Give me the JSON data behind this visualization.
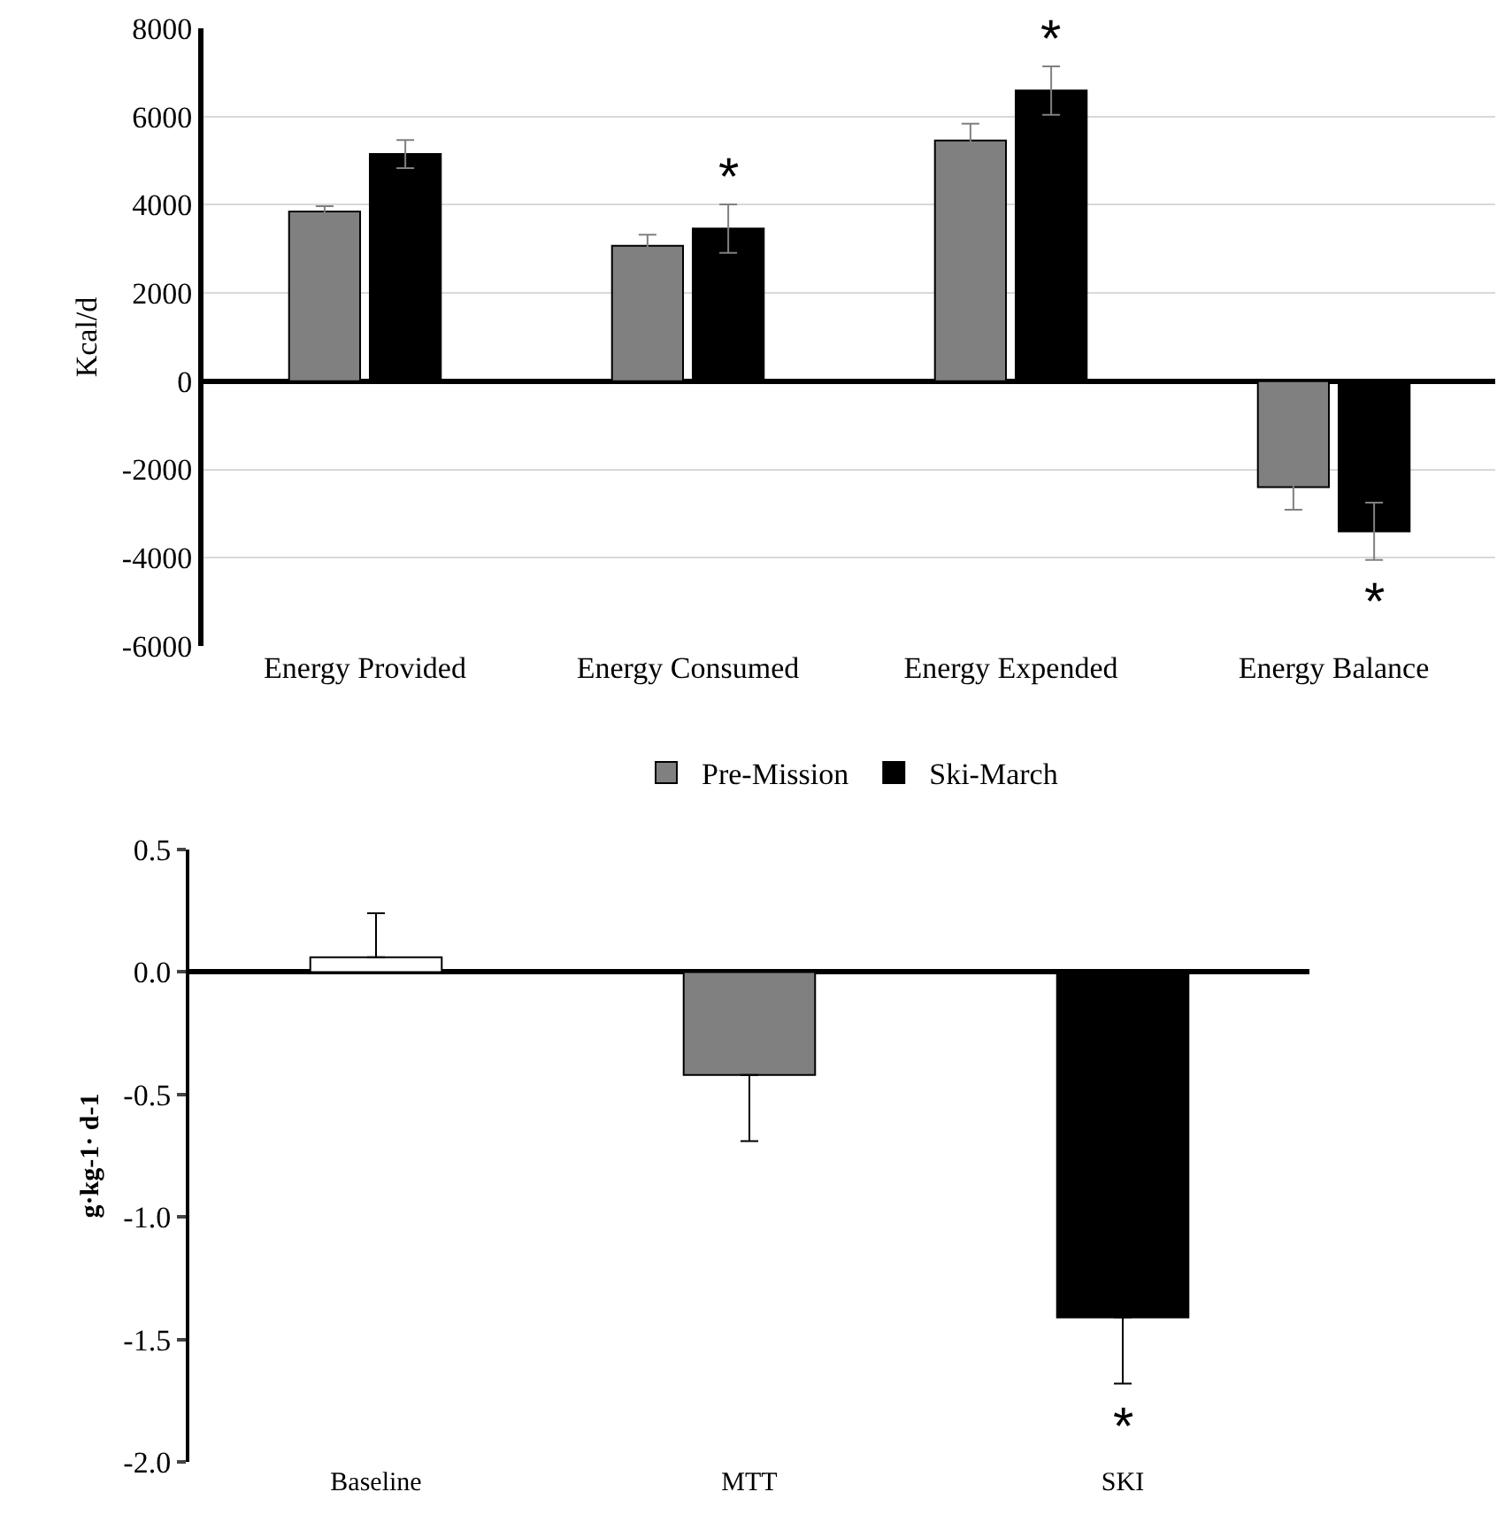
{
  "chart_data": [
    {
      "type": "bar",
      "categories": [
        "Energy Provided",
        "Energy Consumed",
        "Energy Expended",
        "Energy Balance"
      ],
      "ylabel": "Kcal/d",
      "ylim": [
        -6000,
        8000
      ],
      "yticks": [
        -6000,
        -4000,
        -2000,
        0,
        2000,
        4000,
        6000,
        8000
      ],
      "grid": "y",
      "legend": "bottom",
      "series": [
        {
          "name": "Pre-Mission",
          "color": "#808080",
          "values": [
            3850,
            3070,
            5460,
            -2400
          ],
          "errors": [
            120,
            250,
            380,
            510
          ]
        },
        {
          "name": "Ski-March",
          "color": "#000000",
          "values": [
            5150,
            3460,
            6590,
            -3400
          ],
          "errors": [
            320,
            550,
            550,
            650
          ]
        }
      ],
      "annotations": [
        {
          "text": "*",
          "x": "Energy Consumed",
          "y": 3460
        },
        {
          "text": "*",
          "x": "Energy Expended",
          "y": 6590
        },
        {
          "text": "*",
          "x": "Energy Balance",
          "y": -3400
        }
      ]
    },
    {
      "type": "bar",
      "categories": [
        "Baseline",
        "MTT",
        "SKI"
      ],
      "ylabel": "g·kg-1· d-1",
      "ylim": [
        -2,
        0.5
      ],
      "yticks": [
        0.5,
        {
          "value": 0,
          "label": "0.0"
        },
        -0.5,
        {
          "value": -1,
          "label": "-1.0"
        },
        -1.5,
        {
          "value": -2,
          "label": "-2.0"
        }
      ],
      "values": [
        0.06,
        -0.42,
        -1.41
      ],
      "colors": [
        "#ffffff",
        "#808080",
        "#000000"
      ],
      "errors": [
        [
          0.06,
          0.24
        ],
        [
          -0.69,
          -0.42
        ],
        [
          -1.68,
          -1.41
        ]
      ],
      "annotations": [
        {
          "text": "*",
          "x": "SKI",
          "y": -1.41
        }
      ]
    }
  ]
}
